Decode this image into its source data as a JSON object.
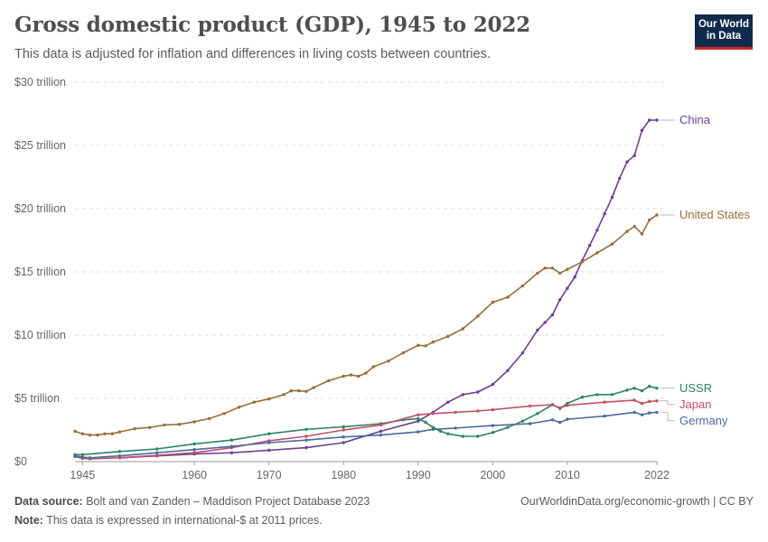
{
  "header": {
    "title": "Gross domestic product (GDP), 1945 to 2022",
    "subtitle": "This data is adjusted for inflation and differences in living costs between countries.",
    "logo_line1": "Our World",
    "logo_line2": "in Data"
  },
  "footer": {
    "source_label": "Data source:",
    "source_text": "Bolt and van Zanden – Maddison Project Database 2023",
    "url": "OurWorldinData.org/economic-growth | CC BY",
    "note_label": "Note:",
    "note_text": "This data is expressed in international-$ at 2011 prices."
  },
  "chart_data": {
    "type": "line",
    "xlim": [
      1944,
      2022
    ],
    "ylim": [
      0,
      30
    ],
    "x_ticks": [
      1945,
      1960,
      1970,
      1980,
      1990,
      2000,
      2010,
      2022
    ],
    "x_tick_labels": [
      "1945",
      "1960",
      "1970",
      "1980",
      "1990",
      "2000",
      "2010",
      "2022"
    ],
    "y_ticks": [
      0,
      5,
      10,
      15,
      20,
      25,
      30
    ],
    "y_tick_labels": [
      "$0",
      "$5 trillion",
      "$10 trillion",
      "$15 trillion",
      "$20 trillion",
      "$25 trillion",
      "$30 trillion"
    ],
    "grid": true,
    "legend": "right-end labels",
    "series": [
      {
        "name": "China",
        "color": "#6d3e91",
        "x": [
          1950,
          1955,
          1960,
          1965,
          1970,
          1975,
          1980,
          1985,
          1990,
          1992,
          1994,
          1996,
          1998,
          2000,
          2002,
          2004,
          2006,
          2007,
          2008,
          2009,
          2010,
          2011,
          2012,
          2013,
          2014,
          2015,
          2016,
          2017,
          2018,
          2019,
          2020,
          2021,
          2022
        ],
        "y": [
          0.3,
          0.45,
          0.6,
          0.7,
          0.9,
          1.1,
          1.5,
          2.4,
          3.2,
          3.9,
          4.7,
          5.3,
          5.5,
          6.1,
          7.2,
          8.6,
          10.4,
          11.0,
          11.6,
          12.8,
          13.7,
          14.6,
          15.9,
          17.1,
          18.3,
          19.6,
          20.9,
          22.4,
          23.7,
          24.2,
          26.2,
          27.0,
          27.0
        ]
      },
      {
        "name": "United States",
        "color": "#996d39",
        "x": [
          1944,
          1945,
          1946,
          1947,
          1948,
          1949,
          1950,
          1952,
          1954,
          1956,
          1958,
          1960,
          1962,
          1964,
          1966,
          1968,
          1970,
          1972,
          1973,
          1974,
          1975,
          1976,
          1978,
          1980,
          1981,
          1982,
          1983,
          1984,
          1986,
          1988,
          1990,
          1991,
          1992,
          1994,
          1996,
          1998,
          2000,
          2002,
          2004,
          2006,
          2007,
          2008,
          2009,
          2010,
          2012,
          2014,
          2016,
          2018,
          2019,
          2020,
          2021,
          2022
        ],
        "y": [
          2.4,
          2.2,
          2.1,
          2.1,
          2.2,
          2.2,
          2.35,
          2.6,
          2.7,
          2.9,
          2.95,
          3.15,
          3.4,
          3.8,
          4.3,
          4.7,
          4.95,
          5.3,
          5.6,
          5.6,
          5.55,
          5.85,
          6.4,
          6.75,
          6.85,
          6.75,
          7.0,
          7.5,
          7.95,
          8.6,
          9.2,
          9.15,
          9.45,
          9.9,
          10.5,
          11.5,
          12.6,
          13.0,
          13.9,
          14.9,
          15.3,
          15.3,
          14.9,
          15.2,
          15.8,
          16.5,
          17.2,
          18.2,
          18.6,
          18.0,
          19.1,
          19.5
        ]
      },
      {
        "name": "USSR",
        "color": "#2c8465",
        "x": [
          1944,
          1945,
          1950,
          1955,
          1960,
          1965,
          1970,
          1975,
          1980,
          1985,
          1988,
          1990,
          1991,
          1992,
          1993,
          1994,
          1996,
          1998,
          2000,
          2002,
          2004,
          2006,
          2008,
          2009,
          2010,
          2012,
          2014,
          2016,
          2018,
          2019,
          2020,
          2021,
          2022
        ],
        "y": [
          0.55,
          0.55,
          0.8,
          1.0,
          1.4,
          1.7,
          2.2,
          2.55,
          2.75,
          3.0,
          3.3,
          3.4,
          3.1,
          2.7,
          2.4,
          2.2,
          2.0,
          2.0,
          2.3,
          2.7,
          3.2,
          3.8,
          4.5,
          4.2,
          4.6,
          5.1,
          5.3,
          5.3,
          5.65,
          5.8,
          5.6,
          5.95,
          5.8
        ]
      },
      {
        "name": "Japan",
        "color": "#c15065",
        "x": [
          1944,
          1945,
          1946,
          1950,
          1955,
          1960,
          1965,
          1970,
          1975,
          1980,
          1985,
          1990,
          1992,
          1995,
          1998,
          2000,
          2005,
          2008,
          2009,
          2010,
          2015,
          2019,
          2020,
          2021,
          2022
        ],
        "y": [
          0.4,
          0.25,
          0.22,
          0.3,
          0.5,
          0.7,
          1.1,
          1.65,
          2.0,
          2.5,
          2.9,
          3.7,
          3.8,
          3.9,
          4.0,
          4.1,
          4.4,
          4.5,
          4.25,
          4.45,
          4.7,
          4.85,
          4.6,
          4.75,
          4.8
        ]
      },
      {
        "name": "Germany",
        "color": "#4c6a9c",
        "x": [
          1944,
          1945,
          1946,
          1950,
          1955,
          1960,
          1965,
          1970,
          1975,
          1980,
          1985,
          1990,
          1992,
          1995,
          2000,
          2005,
          2008,
          2009,
          2010,
          2015,
          2019,
          2020,
          2021,
          2022
        ],
        "y": [
          0.45,
          0.35,
          0.3,
          0.45,
          0.7,
          0.95,
          1.2,
          1.5,
          1.7,
          1.95,
          2.1,
          2.35,
          2.55,
          2.65,
          2.85,
          3.0,
          3.3,
          3.1,
          3.35,
          3.6,
          3.9,
          3.7,
          3.85,
          3.9
        ]
      }
    ]
  }
}
